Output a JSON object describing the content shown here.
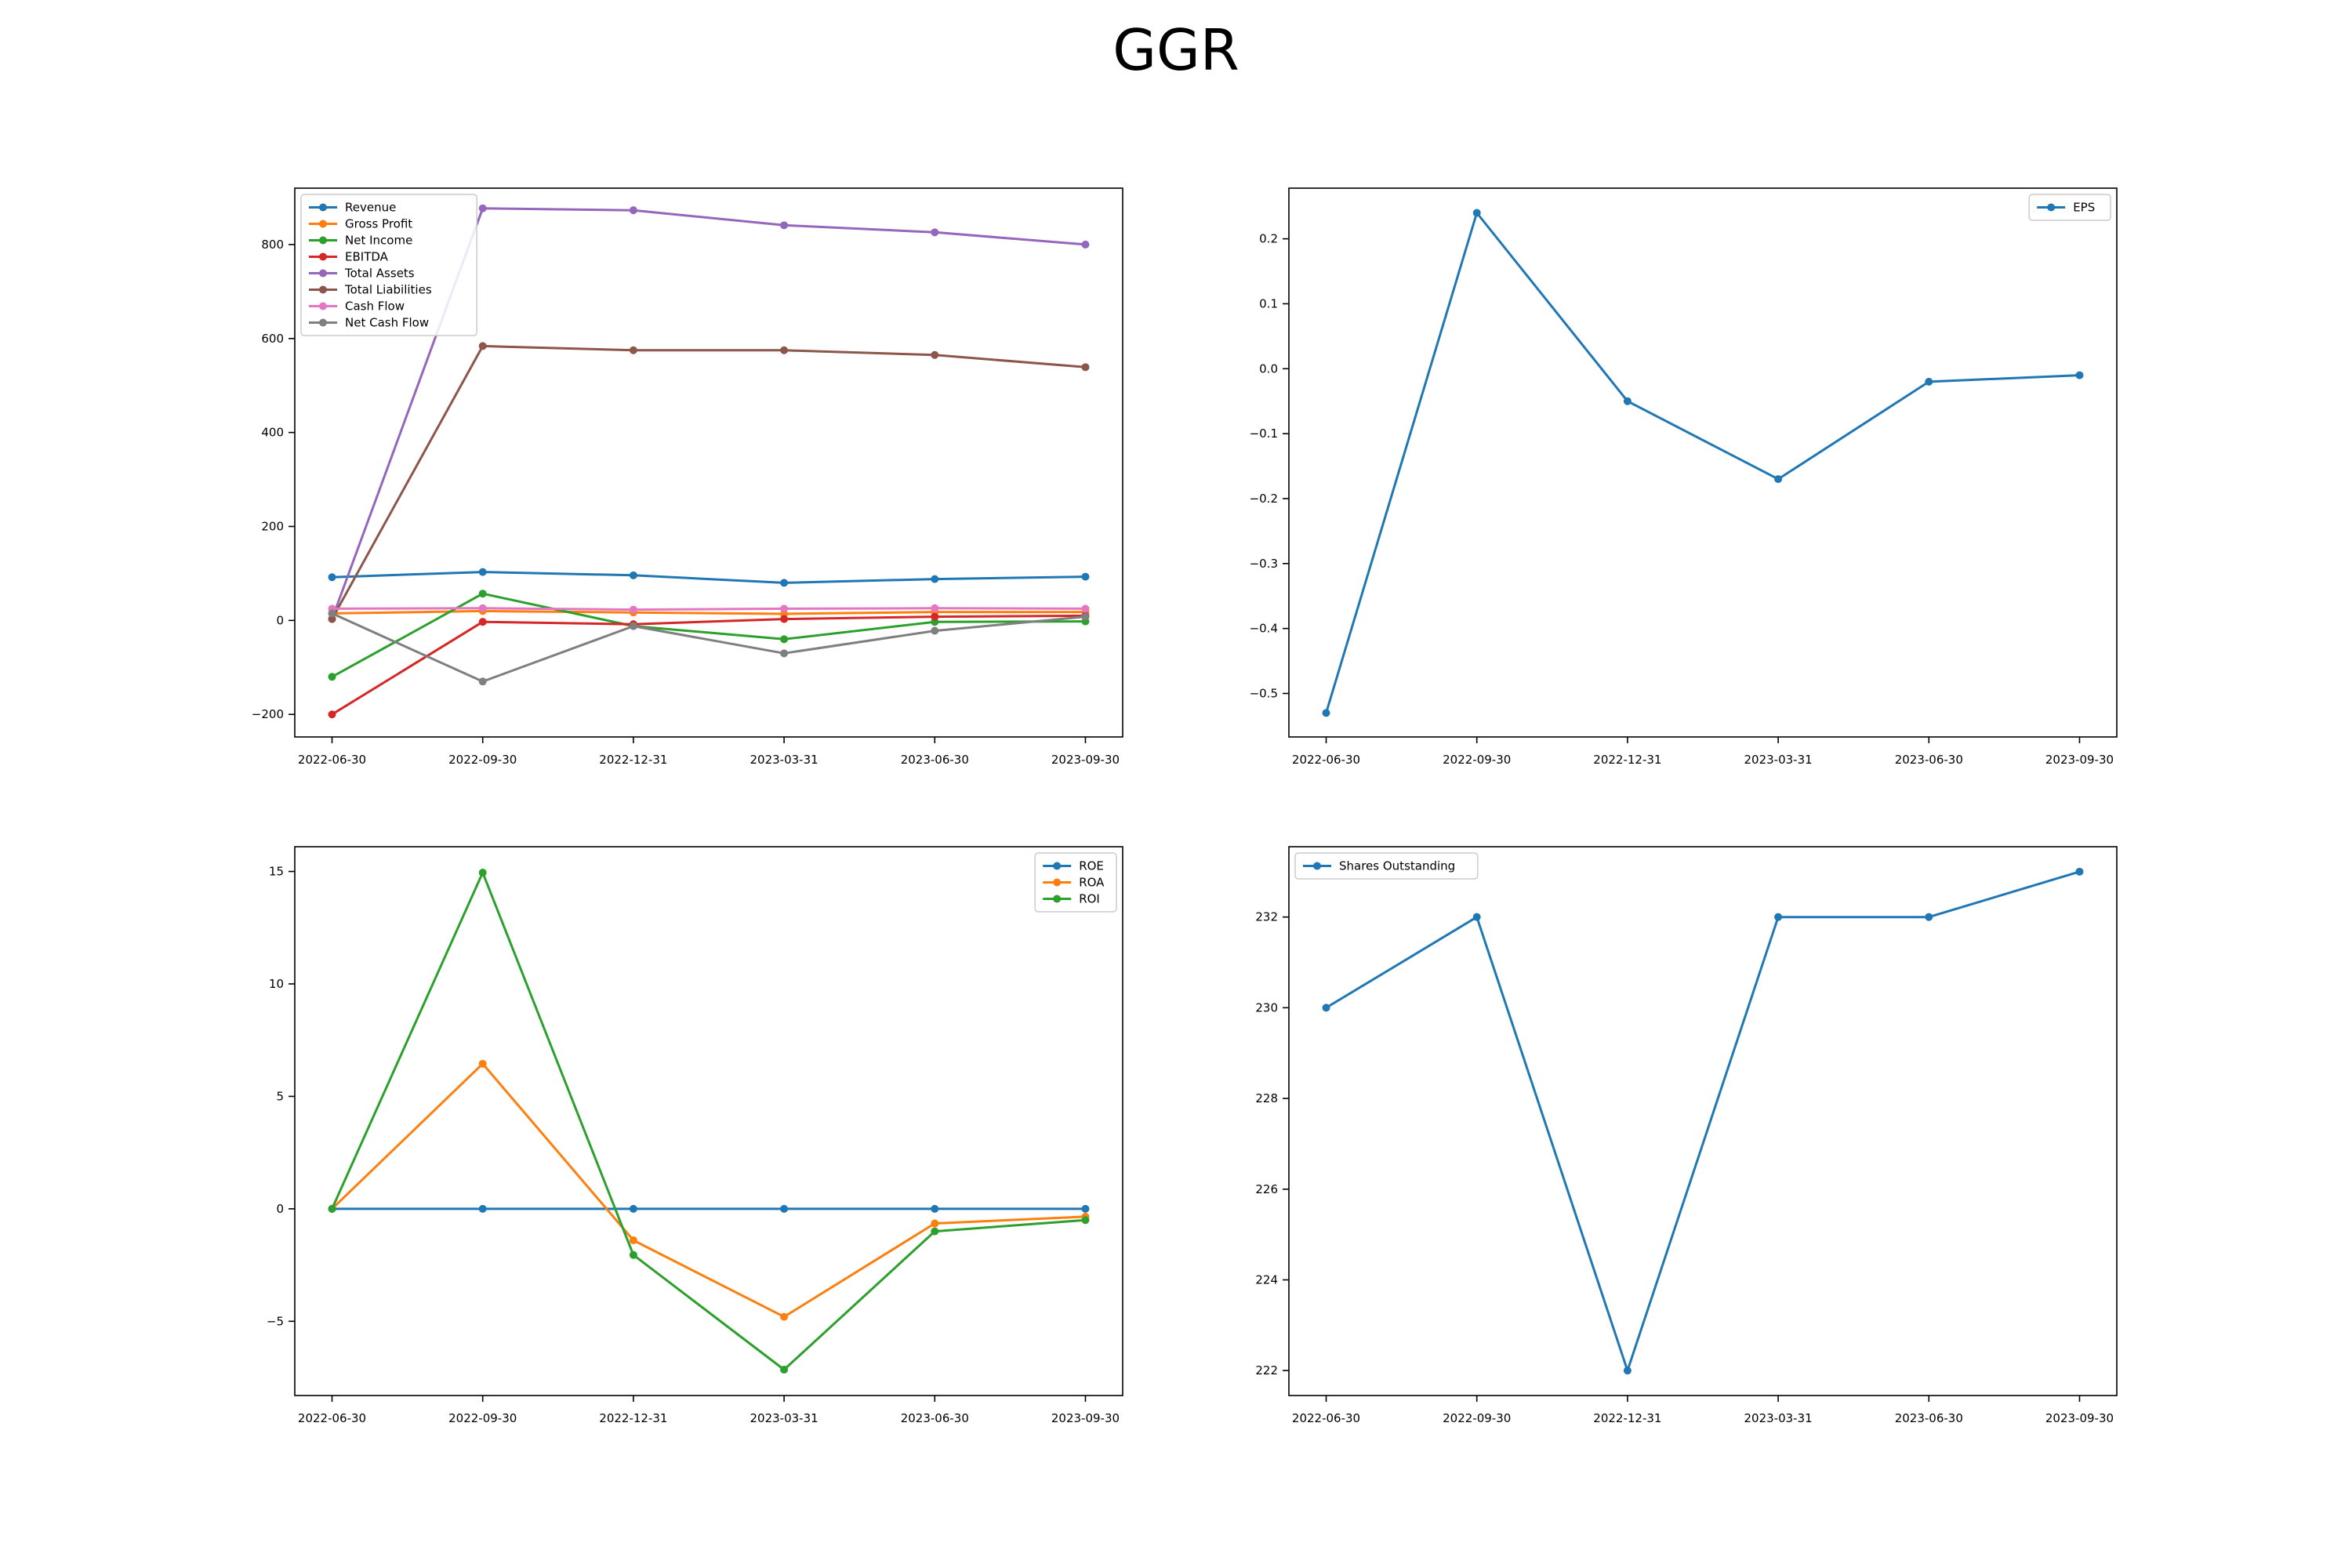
{
  "title": "GGR",
  "colors": {
    "blue": "#1f77b4",
    "orange": "#ff7f0e",
    "green": "#2ca02c",
    "red": "#d62728",
    "purple": "#9467bd",
    "brown": "#8c564b",
    "pink": "#e377c2",
    "gray": "#7f7f7f"
  },
  "chart_data": [
    {
      "type": "line",
      "x": [
        "2022-06-30",
        "2022-09-30",
        "2022-12-31",
        "2023-03-31",
        "2023-06-30",
        "2023-09-30"
      ],
      "ylim": [
        -248,
        920
      ],
      "yticks": [
        -200,
        0,
        200,
        400,
        600,
        800
      ],
      "ytick_labels": [
        "−200",
        "0",
        "200",
        "400",
        "600",
        "800"
      ],
      "legend": "upper-left",
      "series": [
        {
          "name": "Revenue",
          "color": "#1f77b4",
          "values": [
            92,
            103,
            96,
            80,
            88,
            93
          ]
        },
        {
          "name": "Gross Profit",
          "color": "#ff7f0e",
          "values": [
            15,
            20,
            17,
            14,
            18,
            18
          ]
        },
        {
          "name": "Net Income",
          "color": "#2ca02c",
          "values": [
            -120,
            57,
            -12,
            -40,
            -3,
            -2
          ]
        },
        {
          "name": "EBITDA",
          "color": "#d62728",
          "values": [
            -200,
            -3,
            -8,
            3,
            8,
            10
          ]
        },
        {
          "name": "Total Assets",
          "color": "#9467bd",
          "values": [
            3,
            877,
            873,
            841,
            826,
            800
          ]
        },
        {
          "name": "Total Liabilities",
          "color": "#8c564b",
          "values": [
            3,
            584,
            575,
            575,
            565,
            539
          ]
        },
        {
          "name": "Cash Flow",
          "color": "#e377c2",
          "values": [
            25,
            26,
            23,
            25,
            26,
            25
          ]
        },
        {
          "name": "Net Cash Flow",
          "color": "#7f7f7f",
          "values": [
            15,
            -130,
            -12,
            -70,
            -22,
            8
          ]
        }
      ]
    },
    {
      "type": "line",
      "x": [
        "2022-06-30",
        "2022-09-30",
        "2022-12-31",
        "2023-03-31",
        "2023-06-30",
        "2023-09-30"
      ],
      "ylim": [
        -0.567,
        0.278
      ],
      "yticks": [
        -0.5,
        -0.4,
        -0.3,
        -0.2,
        -0.1,
        0.0,
        0.1,
        0.2
      ],
      "ytick_labels": [
        "−0.5",
        "−0.4",
        "−0.3",
        "−0.2",
        "−0.1",
        "0.0",
        "0.1",
        "0.2"
      ],
      "legend": "upper-right",
      "series": [
        {
          "name": "EPS",
          "color": "#1f77b4",
          "values": [
            -0.53,
            0.24,
            -0.05,
            -0.17,
            -0.02,
            -0.01
          ]
        }
      ]
    },
    {
      "type": "line",
      "x": [
        "2022-06-30",
        "2022-09-30",
        "2022-12-31",
        "2023-03-31",
        "2023-06-30",
        "2023-09-30"
      ],
      "ylim": [
        -8.3,
        16.1
      ],
      "yticks": [
        -5,
        0,
        5,
        10,
        15
      ],
      "ytick_labels": [
        "−5",
        "0",
        "5",
        "10",
        "15"
      ],
      "legend": "upper-right",
      "series": [
        {
          "name": "ROE",
          "color": "#1f77b4",
          "values": [
            0,
            0,
            0,
            0,
            0,
            0
          ]
        },
        {
          "name": "ROA",
          "color": "#ff7f0e",
          "values": [
            0,
            6.45,
            -1.4,
            -4.8,
            -0.65,
            -0.35
          ]
        },
        {
          "name": "ROI",
          "color": "#2ca02c",
          "values": [
            0,
            14.95,
            -2.05,
            -7.15,
            -1.0,
            -0.5
          ]
        }
      ]
    },
    {
      "type": "line",
      "x": [
        "2022-06-30",
        "2022-09-30",
        "2022-12-31",
        "2023-03-31",
        "2023-06-30",
        "2023-09-30"
      ],
      "ylim": [
        221.45,
        233.55
      ],
      "yticks": [
        222,
        224,
        226,
        228,
        230,
        232
      ],
      "ytick_labels": [
        "222",
        "224",
        "226",
        "228",
        "230",
        "232"
      ],
      "legend": "upper-left",
      "series": [
        {
          "name": "Shares Outstanding",
          "color": "#1f77b4",
          "values": [
            230,
            232,
            222,
            232,
            232,
            233
          ]
        }
      ]
    }
  ]
}
